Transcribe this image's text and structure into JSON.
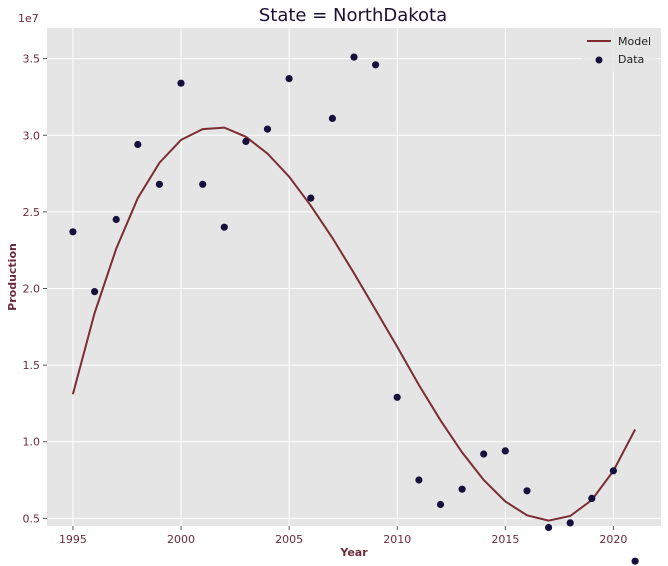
{
  "chart_data": {
    "type": "scatter",
    "title": "State = NorthDakota",
    "xlabel": "Year",
    "ylabel": "Production",
    "y_offset_label": "1e7",
    "xlim": [
      1993.8,
      2022.2
    ],
    "ylim": [
      0.45,
      3.7
    ],
    "x_ticks": [
      1995,
      2000,
      2005,
      2010,
      2015,
      2020
    ],
    "y_ticks": [
      0.5,
      1.0,
      1.5,
      2.0,
      2.5,
      3.0,
      3.5
    ],
    "y_tick_labels": [
      "0.5",
      "1.0",
      "1.5",
      "2.0",
      "2.5",
      "3.0",
      "3.5"
    ],
    "grid": true,
    "legend_position": "top-right",
    "colors": {
      "background": "#e5e5e5",
      "grid": "#ffffff",
      "model": "#7b2d32",
      "data": "#16103d",
      "tick_text": "#6b2b3a",
      "title": "#1a1033"
    },
    "series": [
      {
        "name": "Model",
        "kind": "line",
        "x": [
          1995,
          1996,
          1997,
          1998,
          1999,
          2000,
          2001,
          2002,
          2003,
          2004,
          2005,
          2006,
          2007,
          2008,
          2009,
          2010,
          2011,
          2012,
          2013,
          2014,
          2015,
          2016,
          2017,
          2018,
          2019,
          2020,
          2021
        ],
        "y": [
          1.31,
          1.84,
          2.26,
          2.59,
          2.82,
          2.97,
          3.04,
          3.05,
          2.99,
          2.88,
          2.73,
          2.54,
          2.33,
          2.1,
          1.86,
          1.62,
          1.37,
          1.14,
          0.93,
          0.75,
          0.61,
          0.52,
          0.485,
          0.515,
          0.62,
          0.81,
          1.08
        ]
      },
      {
        "name": "Data",
        "kind": "scatter",
        "x": [
          1995,
          1996,
          1997,
          1998,
          1999,
          2000,
          2001,
          2002,
          2003,
          2004,
          2005,
          2006,
          2007,
          2008,
          2009,
          2010,
          2011,
          2012,
          2013,
          2014,
          2015,
          2016,
          2017,
          2018,
          2019,
          2020,
          2021
        ],
        "y": [
          2.37,
          1.98,
          2.45,
          2.94,
          2.68,
          3.34,
          2.68,
          2.4,
          2.96,
          3.04,
          3.37,
          2.59,
          3.11,
          3.51,
          3.46,
          1.29,
          0.75,
          0.59,
          0.69,
          0.92,
          0.94,
          0.68,
          0.44,
          0.47,
          0.63,
          0.81,
          0.22
        ]
      }
    ]
  }
}
